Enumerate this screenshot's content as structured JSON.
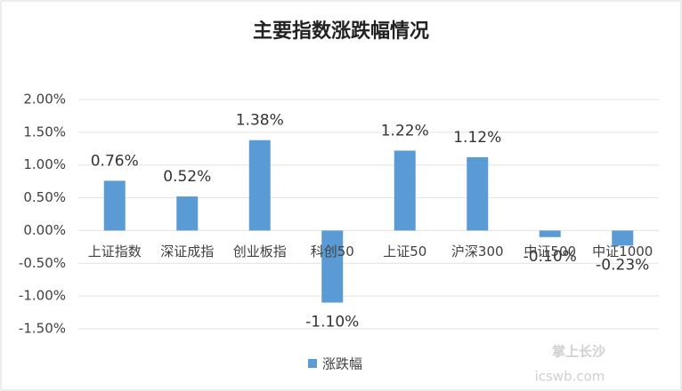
{
  "chart_data": {
    "type": "bar",
    "title": "主要指数涨跌幅情况",
    "categories": [
      "上证指数",
      "深证成指",
      "创业板指",
      "科创50",
      "上证50",
      "沪深300",
      "中证500",
      "中证1000"
    ],
    "series": [
      {
        "name": "涨跌幅",
        "color": "#5b9bd5",
        "values": [
          0.76,
          0.52,
          1.38,
          -1.1,
          1.22,
          1.12,
          -0.1,
          -0.23
        ],
        "value_labels": [
          "0.76%",
          "0.52%",
          "1.38%",
          "-1.10%",
          "1.22%",
          "1.12%",
          "-0.10%",
          "-0.23%"
        ]
      }
    ],
    "ylim": [
      -1.5,
      2
    ],
    "yticks": [
      {
        "value": -1.5,
        "label": "-1.50%"
      },
      {
        "value": -1,
        "label": "-1.00%"
      },
      {
        "value": -0.5,
        "label": "-0.50%"
      },
      {
        "value": 0,
        "label": "0.00%"
      },
      {
        "value": 0.5,
        "label": "0.50%"
      },
      {
        "value": 1,
        "label": "1.00%"
      },
      {
        "value": 1.5,
        "label": "1.50%"
      },
      {
        "value": 2,
        "label": "2.00%"
      }
    ],
    "grid": true,
    "legend": "bottom",
    "watermark": [
      "掌上长沙",
      "icswb.com"
    ]
  }
}
